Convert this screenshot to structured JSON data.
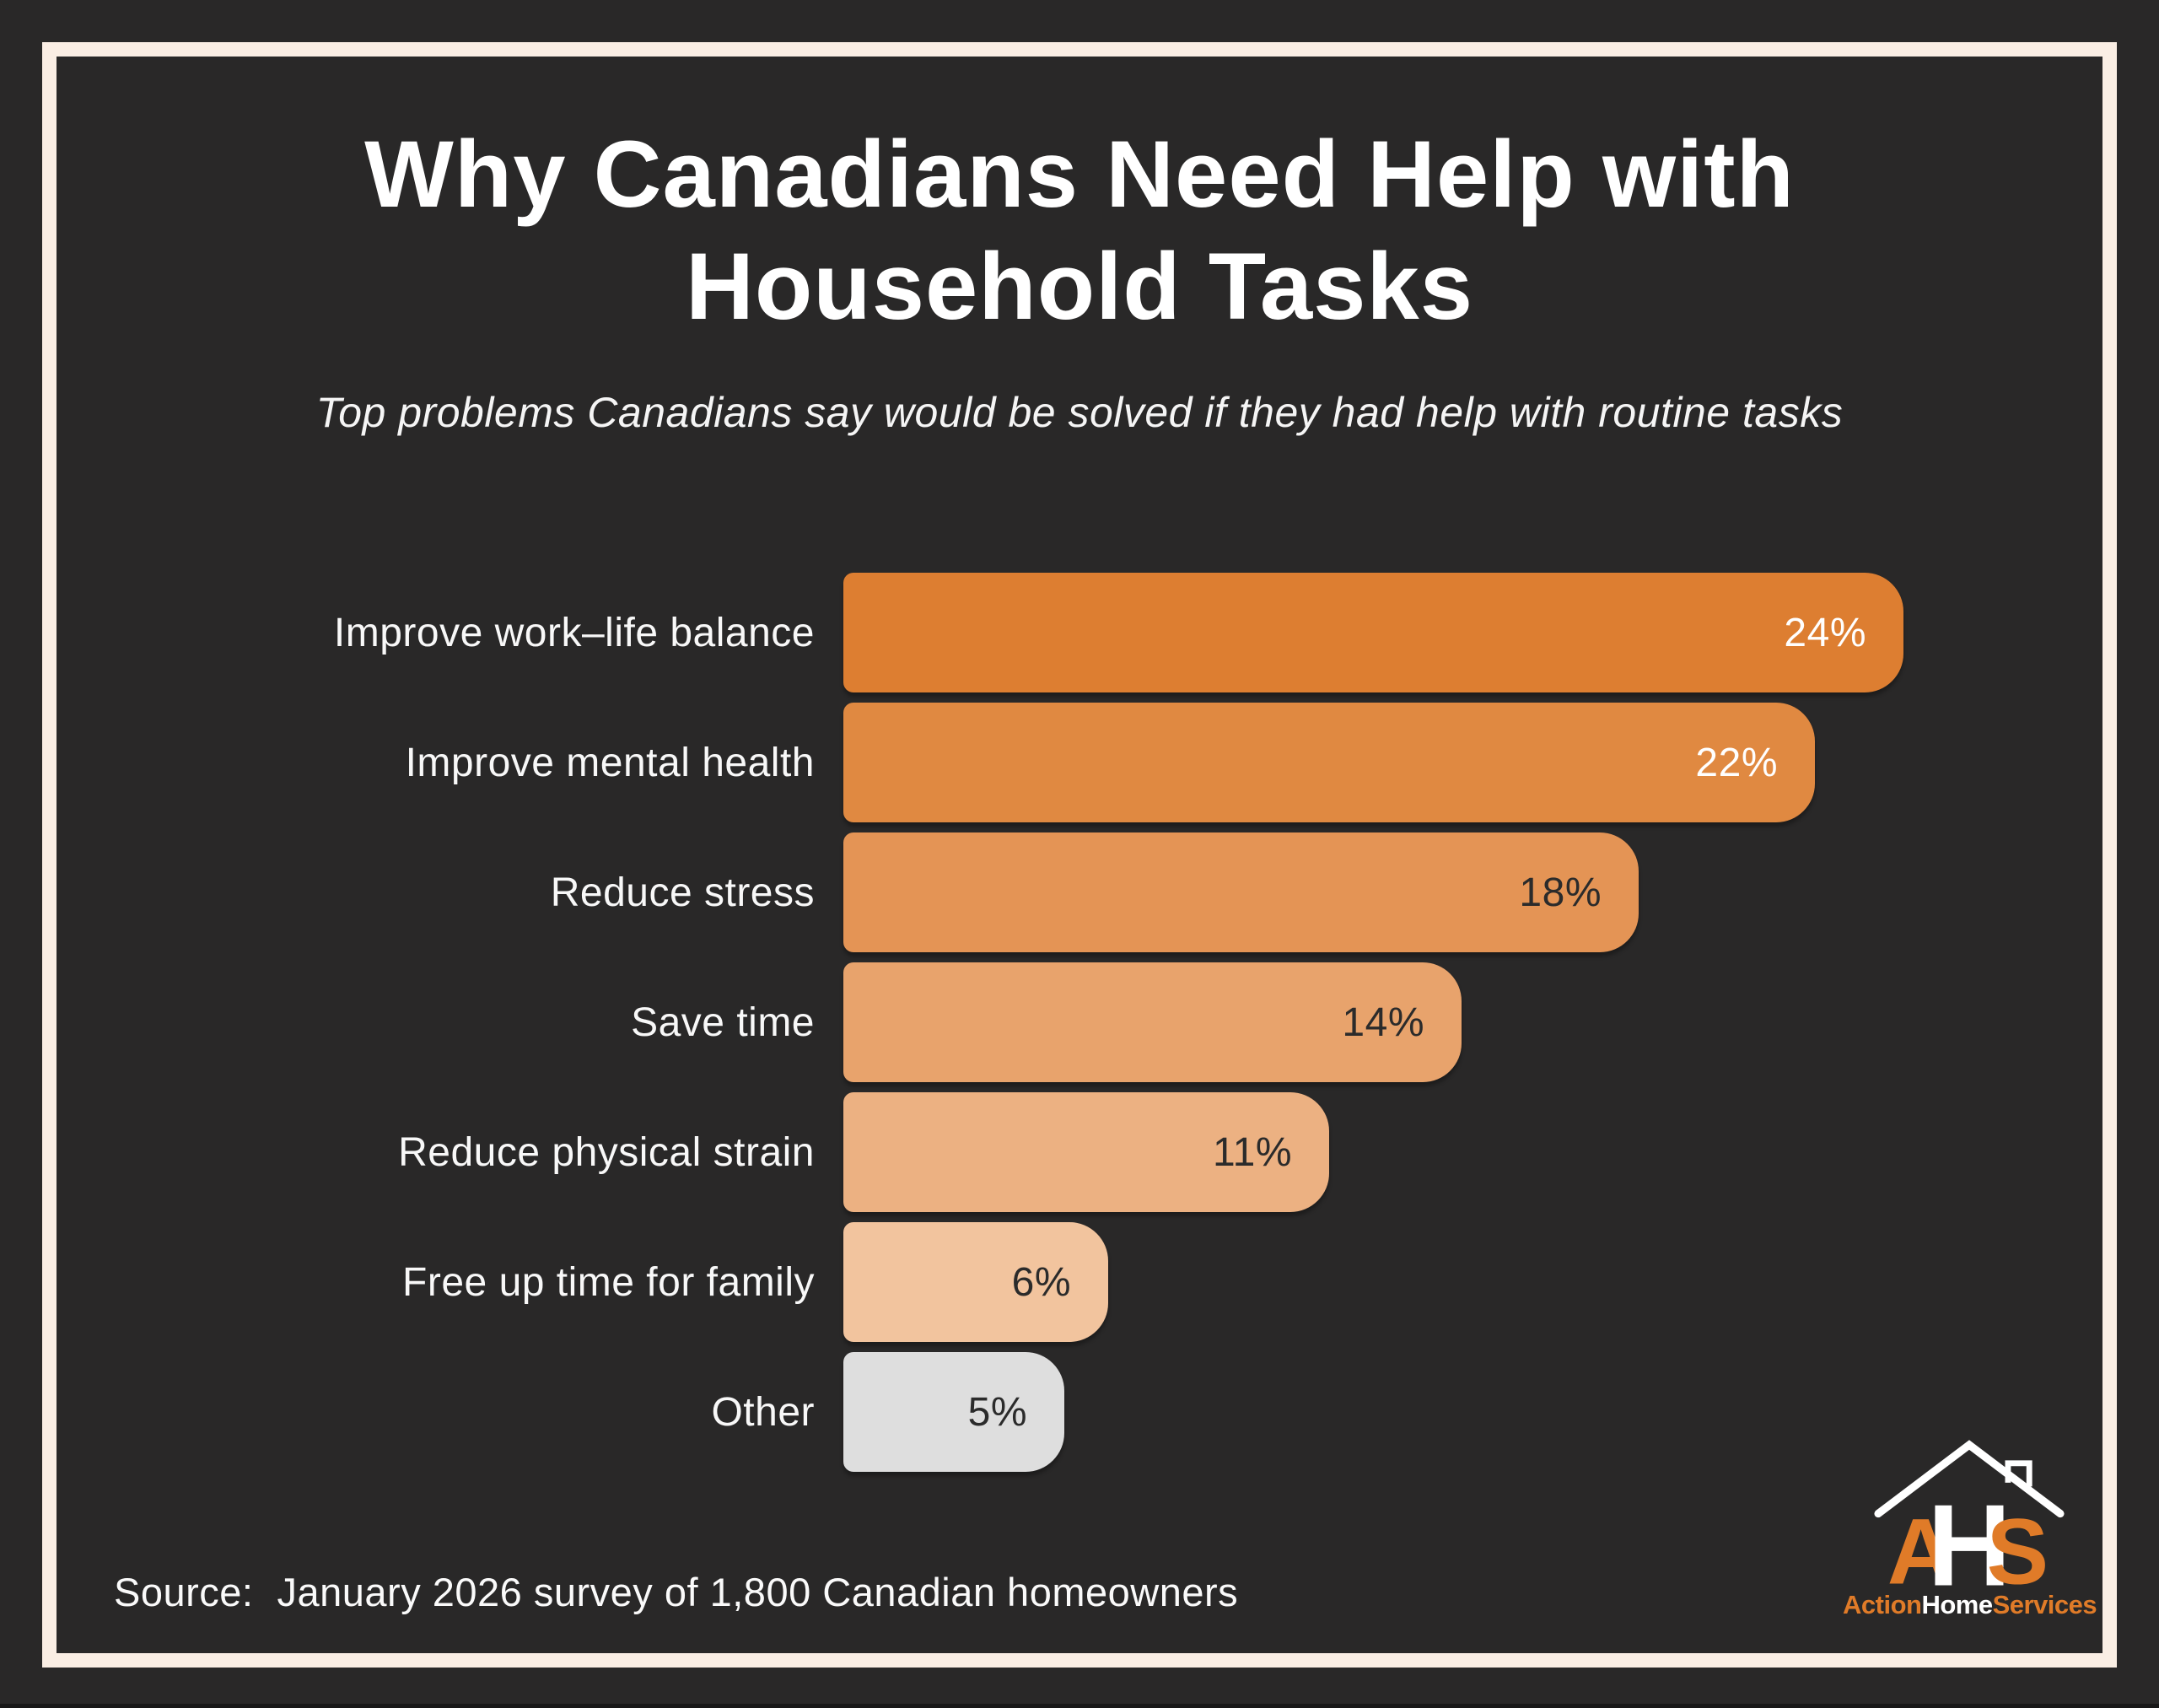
{
  "colors": {
    "background": "#292828",
    "frame": "#FAEEE4",
    "title_text": "#FFFFFF",
    "label_text": "#F8F8F8",
    "dark_value_text": "#2B2B2B",
    "brand_orange": "#E07B28"
  },
  "title_lines": [
    "Why Canadians Need Help with",
    "Household Tasks"
  ],
  "subtitle": "Top problems Canadians say would be solved if they had help with routine tasks",
  "chart_data": {
    "type": "bar",
    "orientation": "horizontal",
    "title": "Why Canadians Need Help with Household Tasks",
    "subtitle": "Top problems Canadians say would be solved if they had help with routine tasks",
    "xlabel": "",
    "ylabel": "",
    "xlim": [
      0,
      24
    ],
    "grid": false,
    "legend": false,
    "categories": [
      "Improve work–life balance",
      "Improve mental health",
      "Reduce stress",
      "Save time",
      "Reduce physical strain",
      "Free up time for family",
      "Other"
    ],
    "values": [
      24,
      22,
      18,
      14,
      11,
      6,
      5
    ],
    "value_labels": [
      "24%",
      "22%",
      "18%",
      "14%",
      "11%",
      "6%",
      "5%"
    ],
    "bar_colors": [
      "#DD7E31",
      "#E08941",
      "#E49455",
      "#E8A36C",
      "#ECB182",
      "#F2C49E",
      "#DEDEDE"
    ],
    "value_text_colors": [
      "#FFFFFF",
      "#FFFFFF",
      "#2B2B2B",
      "#2B2B2B",
      "#2B2B2B",
      "#2B2B2B",
      "#2B2B2B"
    ]
  },
  "source": {
    "label": "Source:",
    "text": "January 2026 survey of 1,800 Canadian homeowners"
  },
  "logo": {
    "letters": [
      "A",
      "H",
      "S"
    ],
    "words": [
      {
        "text": "Action",
        "color": "#E07B28"
      },
      {
        "text": "Home",
        "color": "#FFFFFF"
      },
      {
        "text": "Services",
        "color": "#E07B28"
      }
    ]
  }
}
